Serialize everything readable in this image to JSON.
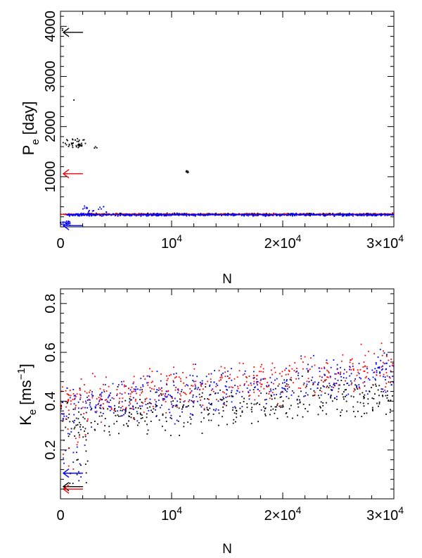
{
  "figure": {
    "background": "#ffffff"
  },
  "colors": {
    "black": "#000000",
    "red": "#ff0000",
    "blue": "#0000ff"
  },
  "chart_data": [
    {
      "type": "scatter",
      "xlabel": "N",
      "ylabel": {
        "main": "P",
        "sub": "e",
        "unit": "[day]"
      },
      "xlim": [
        0,
        30000
      ],
      "ylim": [
        0,
        4300
      ],
      "x_ticks": [
        {
          "value": 0,
          "label": "0"
        },
        {
          "value": 10000,
          "label": "10",
          "sup": "4"
        },
        {
          "value": 20000,
          "label": "2×10",
          "sup": "4"
        },
        {
          "value": 30000,
          "label": "3×10",
          "sup": "4"
        }
      ],
      "y_ticks": [
        {
          "value": 1000,
          "label": "1000"
        },
        {
          "value": 2000,
          "label": "2000"
        },
        {
          "value": 3000,
          "label": "3000"
        },
        {
          "value": 4000,
          "label": "4000"
        }
      ],
      "series": [
        {
          "color": "black",
          "clusters": [
            {
              "x": [
                200,
                2300
              ],
              "y": [
                1580,
                1760
              ],
              "n": 40
            },
            {
              "x": [
                3000,
                3300
              ],
              "y": [
                1540,
                1600
              ],
              "n": 3
            },
            {
              "x": [
                11300,
                11500
              ],
              "y": [
                1040,
                1140
              ],
              "n": 6
            },
            {
              "x": [
                0,
                300
              ],
              "y": [
                3780,
                3980
              ],
              "n": 3
            },
            {
              "x": [
                1200,
                1300
              ],
              "y": [
                2520,
                2560
              ],
              "n": 1
            }
          ],
          "band": {
            "x": [
              2000,
              30000
            ],
            "y": 250,
            "spread": 30
          }
        },
        {
          "color": "red",
          "band": {
            "x": [
              0,
              30000
            ],
            "y": 250,
            "spread": 10
          }
        },
        {
          "color": "blue",
          "clusters": [
            {
              "x": [
                0,
                900
              ],
              "y": [
                30,
                120
              ],
              "n": 20
            },
            {
              "x": [
                2000,
                4200
              ],
              "y": [
                240,
                420
              ],
              "n": 20
            }
          ],
          "band": {
            "x": [
              500,
              30000
            ],
            "y": 240,
            "spread": 35
          }
        }
      ],
      "arrows": [
        {
          "color": "black",
          "y": 3880
        },
        {
          "color": "red",
          "y": 1060
        },
        {
          "color": "blue",
          "y": 25
        }
      ]
    },
    {
      "type": "scatter",
      "xlabel": "N",
      "ylabel": {
        "main": "K",
        "sub": "e",
        "unit_pre": "[ms",
        "unit_sup": "−1",
        "unit_post": "]"
      },
      "xlim": [
        0,
        30000
      ],
      "ylim": [
        0,
        0.86
      ],
      "x_ticks": [
        {
          "value": 0,
          "label": "0"
        },
        {
          "value": 10000,
          "label": "10",
          "sup": "4"
        },
        {
          "value": 20000,
          "label": "2×10",
          "sup": "4"
        },
        {
          "value": 30000,
          "label": "3×10",
          "sup": "4"
        }
      ],
      "y_ticks": [
        {
          "value": 0.2,
          "label": "0.2"
        },
        {
          "value": 0.4,
          "label": "0.4"
        },
        {
          "value": 0.6,
          "label": "0.6"
        },
        {
          "value": 0.8,
          "label": "0.8"
        }
      ],
      "series": [
        {
          "color": "black",
          "trend": {
            "x": [
              0,
              30000
            ],
            "y_start": 0.33,
            "y_end": 0.43,
            "spread": 0.13
          },
          "early": {
            "x": [
              200,
              2500
            ],
            "y": [
              0.05,
              0.33
            ],
            "n": 25
          }
        },
        {
          "color": "red",
          "trend": {
            "x": [
              0,
              30000
            ],
            "y_start": 0.4,
            "y_end": 0.54,
            "spread": 0.13
          },
          "early": {
            "x": [
              200,
              2500
            ],
            "y": [
              0.1,
              0.35
            ],
            "n": 15
          }
        },
        {
          "color": "blue",
          "trend": {
            "x": [
              0,
              30000
            ],
            "y_start": 0.38,
            "y_end": 0.52,
            "spread": 0.13
          },
          "early": {
            "x": [
              200,
              2500
            ],
            "y": [
              0.06,
              0.3
            ],
            "n": 15
          }
        }
      ],
      "arrows": [
        {
          "color": "blue",
          "y": 0.105
        },
        {
          "color": "black",
          "y": 0.05
        },
        {
          "color": "red",
          "y": 0.04
        }
      ]
    }
  ]
}
